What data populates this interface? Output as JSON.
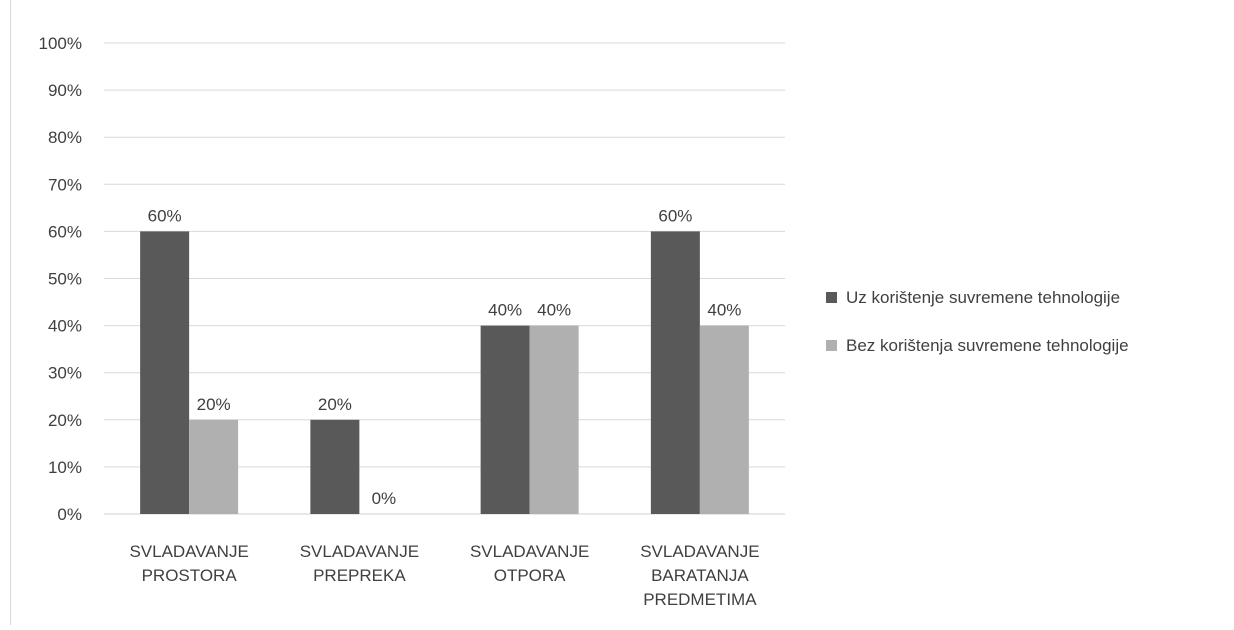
{
  "chart_data": {
    "type": "bar",
    "categories": [
      [
        "SVLADAVANJE",
        "PROSTORA"
      ],
      [
        "SVLADAVANJE",
        "PREPREKA"
      ],
      [
        "SVLADAVANJE",
        "OTPORA"
      ],
      [
        "SVLADAVANJE",
        "BARATANJA",
        "PREDMETIMA"
      ]
    ],
    "series": [
      {
        "name": "Uz korištenje suvremene tehnologije",
        "values": [
          60,
          20,
          40,
          60
        ],
        "color": "#595959"
      },
      {
        "name": "Bez korištenja suvremene tehnologije",
        "values": [
          20,
          0,
          40,
          40
        ],
        "color": "#b0b0b0"
      }
    ],
    "data_labels": [
      [
        "60%",
        "20%",
        "40%",
        "60%"
      ],
      [
        "20%",
        "0%",
        "40%",
        "40%"
      ]
    ],
    "yticks": [
      "0%",
      "10%",
      "20%",
      "30%",
      "40%",
      "50%",
      "60%",
      "70%",
      "80%",
      "90%",
      "100%"
    ],
    "ylim": [
      0,
      100
    ],
    "unit": "%",
    "grid": true,
    "legend_position": "right",
    "title": "",
    "xlabel": "",
    "ylabel": ""
  }
}
